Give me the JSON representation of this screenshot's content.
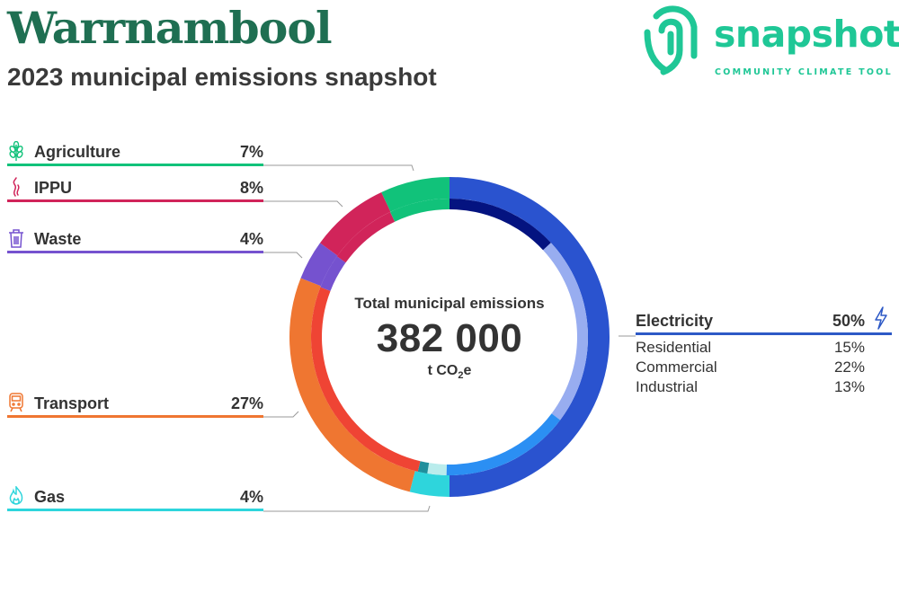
{
  "header": {
    "title": "Warrnambool",
    "subtitle": "2023 municipal emissions snapshot"
  },
  "logo": {
    "word": "snapshot",
    "tagline": "COMMUNITY CLIMATE TOOL",
    "icon": "snapshot-fingerprint-logo",
    "color": "#1fc796"
  },
  "center": {
    "label": "Total municipal emissions",
    "value": "382 000",
    "unit_prefix": "t CO",
    "unit_sub": "2",
    "unit_suffix": "e"
  },
  "sectors": [
    {
      "key": "agriculture",
      "label": "Agriculture",
      "percent": "7%",
      "icon": "wheat-icon",
      "color": "#11c27a"
    },
    {
      "key": "ippu",
      "label": "IPPU",
      "percent": "8%",
      "icon": "smoke-icon",
      "color": "#d1245a"
    },
    {
      "key": "waste",
      "label": "Waste",
      "percent": "4%",
      "icon": "bin-icon",
      "color": "#7552cf"
    },
    {
      "key": "transport",
      "label": "Transport",
      "percent": "27%",
      "icon": "train-icon",
      "color": "#ef7631"
    },
    {
      "key": "gas",
      "label": "Gas",
      "percent": "4%",
      "icon": "flame-icon",
      "color": "#2ed5dc"
    }
  ],
  "electricity": {
    "label": "Electricity",
    "percent": "50%",
    "icon": "lightning-icon",
    "color": "#2d59c6",
    "breakdown": [
      {
        "label": "Residential",
        "percent": "15%"
      },
      {
        "label": "Commercial",
        "percent": "22%"
      },
      {
        "label": "Industrial",
        "percent": "13%"
      }
    ]
  },
  "chart_data": {
    "type": "donut",
    "total": 382000,
    "unit": "t CO2e",
    "outer_ring": [
      {
        "name": "Electricity",
        "value": 50,
        "color": "#2a53cf"
      },
      {
        "name": "Gas",
        "value": 4,
        "color": "#2ed5dc"
      },
      {
        "name": "Transport",
        "value": 27,
        "color": "#ef7631"
      },
      {
        "name": "Waste",
        "value": 4,
        "color": "#7552cf"
      },
      {
        "name": "IPPU",
        "value": 8,
        "color": "#d1245a"
      },
      {
        "name": "Agriculture",
        "value": 7,
        "color": "#11c27a"
      }
    ],
    "inner_ring": [
      {
        "name": "Industrial",
        "value": 13,
        "color": "#041380"
      },
      {
        "name": "Commercial",
        "value": 22,
        "color": "#98adf0"
      },
      {
        "name": "Residential",
        "value": 15,
        "color": "#2b8ff3"
      },
      {
        "name": "Residential (gas)",
        "value": 2.2,
        "color": "#b9ecec"
      },
      {
        "name": "Commercial (gas)",
        "value": 1.1,
        "color": "#1f8f9c"
      },
      {
        "name": "Transport",
        "value": 27,
        "color": "#ef4434"
      },
      {
        "name": "Waste",
        "value": 4,
        "color": "#7552cf"
      },
      {
        "name": "IPPU",
        "value": 8,
        "color": "#d1245a"
      },
      {
        "name": "Agriculture",
        "value": 7,
        "color": "#11c27a"
      }
    ]
  }
}
